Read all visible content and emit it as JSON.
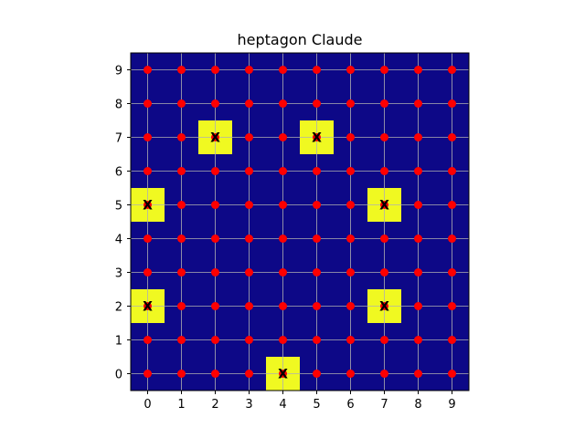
{
  "chart_data": {
    "type": "heatmap",
    "title": "heptagon Claude",
    "xlabel": "",
    "ylabel": "",
    "xlim": [
      -0.5,
      9.5
    ],
    "ylim": [
      -0.5,
      9.5
    ],
    "x_ticks": [
      "0",
      "1",
      "2",
      "3",
      "4",
      "5",
      "6",
      "7",
      "8",
      "9"
    ],
    "y_ticks": [
      "0",
      "1",
      "2",
      "3",
      "4",
      "5",
      "6",
      "7",
      "8",
      "9"
    ],
    "grid": true,
    "grid_size": 10,
    "background_color": "#0d0887",
    "highlight_color": "#f0f921",
    "point_color": "#ff0000",
    "marked_cells": [
      {
        "x": 4,
        "y": 0,
        "label": "X"
      },
      {
        "x": 0,
        "y": 2,
        "label": "X"
      },
      {
        "x": 7,
        "y": 2,
        "label": "X"
      },
      {
        "x": 0,
        "y": 5,
        "label": "X"
      },
      {
        "x": 7,
        "y": 5,
        "label": "X"
      },
      {
        "x": 2,
        "y": 7,
        "label": "X"
      },
      {
        "x": 5,
        "y": 7,
        "label": "X"
      }
    ]
  }
}
